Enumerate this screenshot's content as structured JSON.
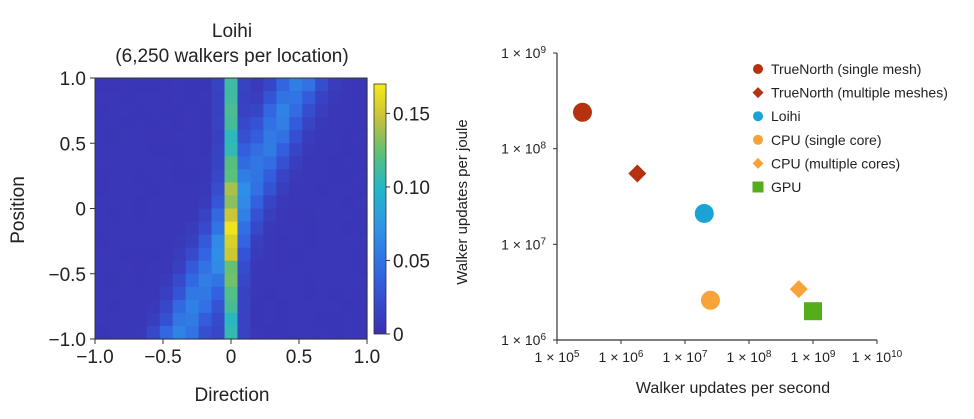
{
  "colors": {
    "truenorth": "#b5310f",
    "loihi": "#1aa3d4",
    "cpu": "#f6a33a",
    "gpu": "#55ad1c",
    "heatmap_low": "#3b2fb0"
  },
  "chart_data": [
    {
      "type": "heatmap",
      "title": "Loihi",
      "subtitle": "(6,250 walkers per location)",
      "xlabel": "Direction",
      "ylabel": "Position",
      "xlim": [
        -1.0,
        1.0
      ],
      "ylim": [
        -1.0,
        1.0
      ],
      "x_ticks": [
        "−1.0",
        "−0.5",
        "0",
        "0.5",
        "1.0"
      ],
      "y_ticks": [
        "1.0",
        "0.5",
        "0",
        "−0.5",
        "−1.0"
      ],
      "colorbar": {
        "range": [
          0,
          0.17
        ],
        "ticks": [
          "0.15",
          "0.10",
          "0.05",
          "0"
        ],
        "tick_values": [
          0.15,
          0.1,
          0.05,
          0
        ]
      },
      "grid_cols": 21,
      "grid_rows": 20
    },
    {
      "type": "scatter",
      "xlabel": "Walker updates per second",
      "ylabel": "Walker updates per joule",
      "xscale": "log",
      "yscale": "log",
      "xlim": [
        100000,
        10000000000
      ],
      "ylim": [
        1000000,
        1000000000
      ],
      "x_ticks": [
        {
          "value": 100000,
          "m": "1 × 10",
          "e": "5"
        },
        {
          "value": 1000000,
          "m": "1 × 10",
          "e": "6"
        },
        {
          "value": 10000000,
          "m": "1 × 10",
          "e": "7"
        },
        {
          "value": 100000000,
          "m": "1 × 10",
          "e": "8"
        },
        {
          "value": 1000000000,
          "m": "1 × 10",
          "e": "9"
        },
        {
          "value": 10000000000,
          "m": "1 × 10",
          "e": "10"
        }
      ],
      "y_ticks": [
        {
          "value": 1000000000,
          "m": "1 × 10",
          "e": "9"
        },
        {
          "value": 100000000,
          "m": "1 × 10",
          "e": "8"
        },
        {
          "value": 10000000,
          "m": "1 × 10",
          "e": "7"
        },
        {
          "value": 1000000,
          "m": "1 × 10",
          "e": "6"
        }
      ],
      "legend_position": "top-right",
      "series": [
        {
          "name": "TrueNorth (single mesh)",
          "marker": "circle",
          "color": "#b5310f",
          "x": 250000,
          "y": 240000000
        },
        {
          "name": "TrueNorth (multiple meshes)",
          "marker": "diamond",
          "color": "#b5310f",
          "x": 1800000,
          "y": 55000000
        },
        {
          "name": "Loihi",
          "marker": "circle",
          "color": "#1aa3d4",
          "x": 20000000,
          "y": 21000000
        },
        {
          "name": "CPU (single core)",
          "marker": "circle",
          "color": "#f6a33a",
          "x": 25000000,
          "y": 2600000
        },
        {
          "name": "CPU (multiple cores)",
          "marker": "diamond",
          "color": "#f6a33a",
          "x": 600000000,
          "y": 3400000
        },
        {
          "name": "GPU",
          "marker": "square",
          "color": "#55ad1c",
          "x": 1000000000,
          "y": 2000000
        }
      ]
    }
  ]
}
